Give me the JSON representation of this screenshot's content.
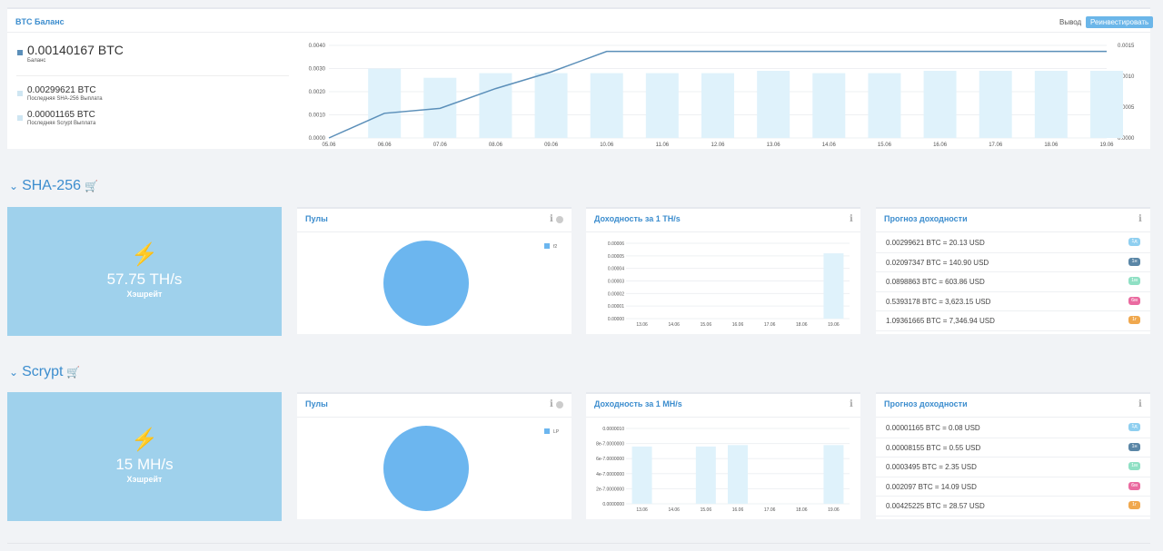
{
  "balance": {
    "title": "BTC Баланс",
    "withdraw_label": "Вывод",
    "reinvest_label": "Реинвестировать",
    "main_value": "0.00140167 BTC",
    "main_label": "Баланс",
    "sha_value": "0.00299621 BTC",
    "sha_label": "Последняя SHA-256 Выплата",
    "scrypt_value": "0.00001165 BTC",
    "scrypt_label": "Последняя Scrypt Выплата",
    "colors": {
      "line": "#5b8fb9",
      "bar": "#dff2fb"
    }
  },
  "chart_data": [
    {
      "type": "bar",
      "categories": [
        "05.06",
        "06.06",
        "07.06",
        "08.06",
        "09.06",
        "10.06",
        "11.06",
        "12.06",
        "13.06",
        "14.06",
        "15.06",
        "16.06",
        "17.06",
        "18.06",
        "19.06"
      ],
      "series": [
        {
          "values": [
            0,
            0.00299621,
            0.0026,
            0.0028,
            0.0028,
            0.0028,
            0.0028,
            0.0028,
            0.0029,
            0.0028,
            0.0028,
            0.0029,
            0.0029,
            0.0029,
            0.0029
          ]
        },
        {
          "values": [
            0,
            0.0004,
            0.00048,
            0.0008,
            0.00107,
            0.00140167,
            0.00140167,
            0.00140167,
            0.00140167,
            0.00140167,
            0.00140167,
            0.00140167,
            0.00140167,
            0.00140167,
            0.00140167
          ]
        }
      ],
      "y_left_ticks": [
        "0.0000",
        "0.0010",
        "0.0020",
        "0.0030",
        "0.0040"
      ],
      "y_right_ticks": [
        "0.0000",
        "0.0005",
        "0.0010",
        "0.0015"
      ],
      "ylim_left": [
        0,
        0.004
      ],
      "ylim_right": [
        0,
        0.0015
      ]
    },
    {
      "type": "bar",
      "categories": [
        "13.06",
        "14.06",
        "15.06",
        "16.06",
        "17.06",
        "18.06",
        "19.06"
      ],
      "values": [
        0,
        0,
        0,
        0,
        0,
        0,
        5.2e-05
      ],
      "y_ticks": [
        "0.00000",
        "0.00001",
        "0.00002",
        "0.00003",
        "0.00004",
        "0.00005",
        "0.00006"
      ],
      "ylim": [
        0,
        6e-05
      ]
    },
    {
      "type": "bar",
      "categories": [
        "13.06",
        "14.06",
        "15.06",
        "16.06",
        "17.06",
        "18.06",
        "19.06"
      ],
      "values": [
        7.6e-07,
        0,
        7.6e-07,
        7.8e-07,
        0,
        0,
        7.8e-07
      ],
      "y_ticks": [
        "0.0000000",
        "2e-7.0000000",
        "4e-7.0000000",
        "6e-7.0000000",
        "8e-7.0000000",
        "0.0000010"
      ],
      "ylim": [
        0,
        1e-06
      ]
    },
    {
      "type": "pie",
      "categories": [
        "f2"
      ],
      "values": [
        100
      ]
    },
    {
      "type": "pie",
      "categories": [
        "LP"
      ],
      "values": [
        100
      ]
    }
  ],
  "sha": {
    "title": "SHA-256",
    "hashrate": "57.75 TH/s",
    "hashrate_label": "Хэшрейт",
    "pools_title": "Пулы",
    "pool_legend": "f2",
    "yield_title": "Доходность за 1 TH/s",
    "forecast_title": "Прогноз доходности",
    "forecast": [
      {
        "text": "0.00299621 BTC = 20.13 USD",
        "badge": "1д",
        "color": "#8fcff0"
      },
      {
        "text": "0.02097347 BTC = 140.90 USD",
        "badge": "1н",
        "color": "#5a86a6"
      },
      {
        "text": "0.0898863 BTC = 603.86 USD",
        "badge": "1м",
        "color": "#8fe0c4"
      },
      {
        "text": "0.5393178 BTC = 3,623.15 USD",
        "badge": "6м",
        "color": "#ea6aa0"
      },
      {
        "text": "1.09361665 BTC = 7,346.94 USD",
        "badge": "1г",
        "color": "#f0a84e"
      }
    ]
  },
  "scrypt": {
    "title": "Scrypt",
    "hashrate": "15 MH/s",
    "hashrate_label": "Хэшрейт",
    "pools_title": "Пулы",
    "pool_legend": "LP",
    "yield_title": "Доходность за 1 MH/s",
    "forecast_title": "Прогноз доходности",
    "forecast": [
      {
        "text": "0.00001165 BTC = 0.08 USD",
        "badge": "1д",
        "color": "#8fcff0"
      },
      {
        "text": "0.00008155 BTC = 0.55 USD",
        "badge": "1н",
        "color": "#5a86a6"
      },
      {
        "text": "0.0003495 BTC = 2.35 USD",
        "badge": "1м",
        "color": "#8fe0c4"
      },
      {
        "text": "0.002097 BTC = 14.09 USD",
        "badge": "6м",
        "color": "#ea6aa0"
      },
      {
        "text": "0.00425225 BTC = 28.57 USD",
        "badge": "1г",
        "color": "#f0a84e"
      }
    ]
  }
}
